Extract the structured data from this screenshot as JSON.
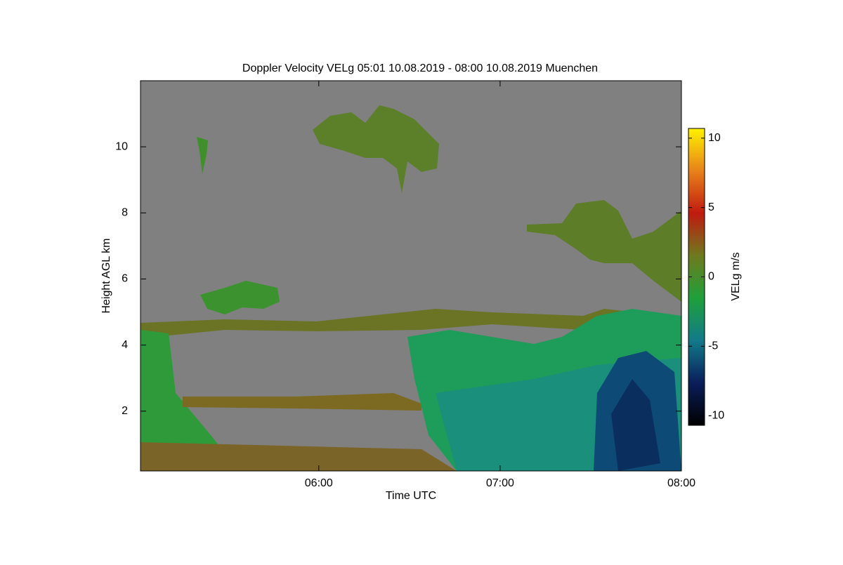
{
  "chart_data": {
    "type": "radar-timeheight",
    "title": "Doppler Velocity VELg   05:01 10.08.2019 - 08:00 10.08.2019 Muenchen",
    "xlabel": "Time UTC",
    "ylabel": "Height AGL km",
    "xlim": [
      301,
      480
    ],
    "xticks": [
      {
        "value": 360,
        "label": "06:00"
      },
      {
        "value": 420,
        "label": "07:00"
      },
      {
        "value": 480,
        "label": "08:00"
      }
    ],
    "ylim": [
      0.19,
      12
    ],
    "yticks": [
      2,
      4,
      6,
      8,
      10
    ],
    "colorbar": {
      "label": "VELg m/s",
      "lim": [
        -10.7,
        10.7
      ],
      "ticks": [
        -10,
        -5,
        0,
        5,
        10
      ],
      "colormap": [
        "#000000",
        "#0a1e5a",
        "#127a8a",
        "#1fa03a",
        "#6e7a1e",
        "#c01a10",
        "#e8821a",
        "#fff200"
      ]
    },
    "background": "#808080"
  }
}
